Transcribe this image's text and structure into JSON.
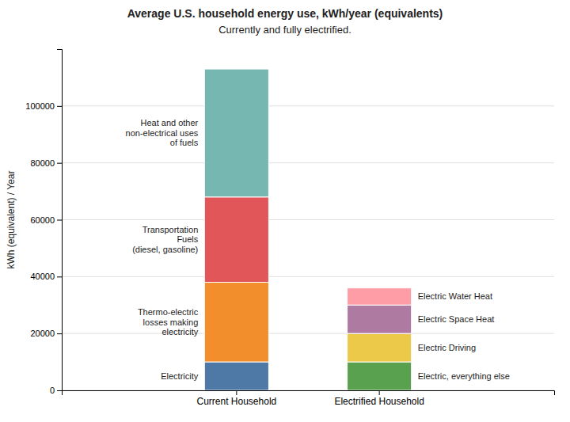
{
  "chart_data": {
    "type": "bar",
    "stacked": true,
    "grid": true,
    "title": "Average U.S. household energy use, kWh/year (equivalents)",
    "subtitle": "Currently and fully electrified.",
    "ylabel": "kWh (equivalent) / Year",
    "categories": [
      "Current Household",
      "Electrified Household"
    ],
    "series": [
      {
        "name": "Electricity",
        "values": [
          10000,
          null
        ]
      },
      {
        "name": "Thermo-electric\nlosses making\nelectricity",
        "values": [
          28000,
          null
        ]
      },
      {
        "name": "Transportation\nFuels\n(diesel, gasoline)",
        "values": [
          30000,
          null
        ]
      },
      {
        "name": "Heat and other\nnon-electrical uses\nof fuels",
        "values": [
          45000,
          null
        ]
      },
      {
        "name": "Electric, everything else",
        "values": [
          null,
          10000
        ]
      },
      {
        "name": "Electric Driving",
        "values": [
          null,
          10000
        ]
      },
      {
        "name": "Electric Space Heat",
        "values": [
          null,
          10000
        ]
      },
      {
        "name": "Electric Water Heat",
        "values": [
          null,
          6000
        ]
      }
    ],
    "ylim": [
      0,
      120000
    ],
    "yticks": [
      0,
      20000,
      40000,
      60000,
      80000,
      100000
    ]
  }
}
